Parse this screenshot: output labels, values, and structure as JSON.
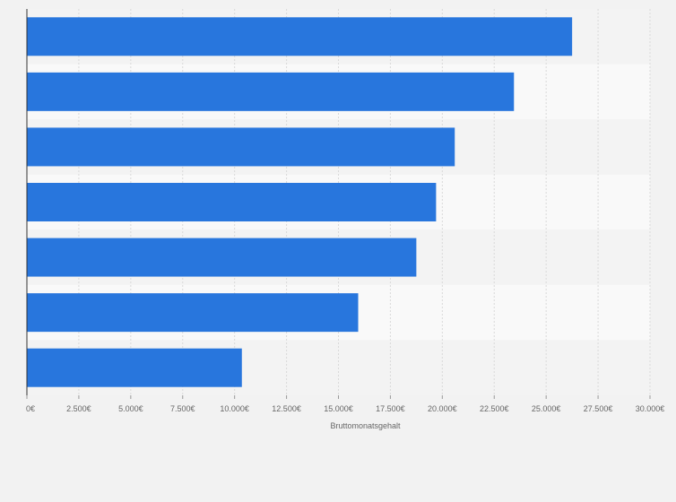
{
  "chart_data": {
    "type": "bar",
    "orientation": "horizontal",
    "title": "",
    "categories": [
      "",
      "",
      "",
      "",
      "",
      "",
      ""
    ],
    "values": [
      26250,
      23450,
      20600,
      19700,
      18750,
      15950,
      10350
    ],
    "xlabel": "Bruttomonatsgehalt",
    "ylabel": "",
    "xlim": [
      0,
      30000
    ],
    "ticks": [
      0,
      2500,
      5000,
      7500,
      10000,
      12500,
      15000,
      17500,
      20000,
      22500,
      25000,
      27500,
      30000
    ],
    "tick_labels": [
      "0€",
      "2.500€",
      "5.000€",
      "7.500€",
      "10.000€",
      "12.500€",
      "15.000€",
      "17.500€",
      "20.000€",
      "22.500€",
      "25.000€",
      "27.500€",
      "30.000€"
    ],
    "grid": true,
    "colors": {
      "bar": "#2876dd",
      "band_light": "#f9f9f9",
      "band_dark": "#f3f3f3",
      "grid": "#d9d9d9",
      "axis": "#333333",
      "text": "#666666"
    }
  }
}
